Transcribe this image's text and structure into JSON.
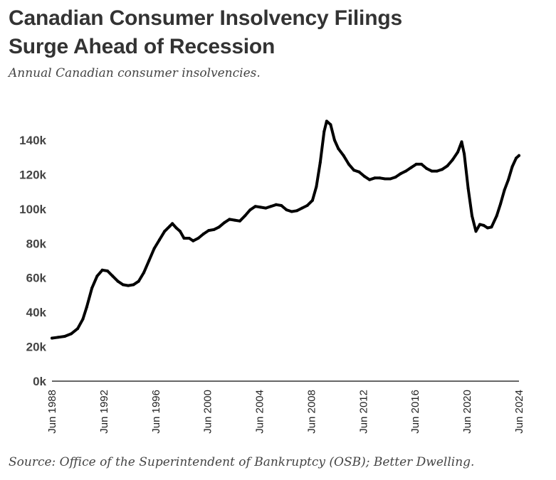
{
  "header": {
    "title_line1": "Canadian Consumer Insolvency Filings",
    "title_line2": "Surge Ahead of Recession",
    "subtitle": "Annual Canadian consumer insolvencies."
  },
  "footer": {
    "source": "Source: Office of the Superintendent of Bankruptcy (OSB); Better Dwelling."
  },
  "colors": {
    "line": "#000000",
    "axis": "#333333",
    "text": "#444444"
  },
  "chart_data": {
    "type": "line",
    "title": "Canadian Consumer Insolvency Filings Surge Ahead of Recession",
    "subtitle": "Annual Canadian consumer insolvencies.",
    "xlabel": "",
    "ylabel": "",
    "ylim": [
      0,
      140
    ],
    "xlim": [
      1988.42,
      2024.42
    ],
    "grid": false,
    "legend": "none",
    "yticks": [
      {
        "value": 0,
        "label": "0k"
      },
      {
        "value": 20,
        "label": "20k"
      },
      {
        "value": 40,
        "label": "40k"
      },
      {
        "value": 60,
        "label": "60k"
      },
      {
        "value": 80,
        "label": "80k"
      },
      {
        "value": 100,
        "label": "100k"
      },
      {
        "value": 120,
        "label": "120k"
      },
      {
        "value": 140,
        "label": "140k"
      }
    ],
    "xticks": [
      {
        "value": 1988.42,
        "label": "Jun 1988"
      },
      {
        "value": 1992.42,
        "label": "Jun 1992"
      },
      {
        "value": 1996.42,
        "label": "Jun 1996"
      },
      {
        "value": 2000.42,
        "label": "Jun 2000"
      },
      {
        "value": 2004.42,
        "label": "Jun 2004"
      },
      {
        "value": 2008.42,
        "label": "Jun 2008"
      },
      {
        "value": 2012.42,
        "label": "Jun 2012"
      },
      {
        "value": 2016.42,
        "label": "Jun 2016"
      },
      {
        "value": 2020.42,
        "label": "Jun 2020"
      },
      {
        "value": 2024.42,
        "label": "Jun 2024"
      }
    ],
    "series": [
      {
        "name": "Annual consumer insolvencies (thousands)",
        "x": [
          1988.42,
          1988.9,
          1989.4,
          1989.9,
          1990.4,
          1990.8,
          1991.1,
          1991.5,
          1991.9,
          1992.3,
          1992.7,
          1993.1,
          1993.5,
          1993.9,
          1994.3,
          1994.7,
          1995.1,
          1995.5,
          1995.9,
          1996.3,
          1996.7,
          1997.1,
          1997.5,
          1997.7,
          1998.0,
          1998.3,
          1998.6,
          1999.0,
          1999.3,
          1999.7,
          2000.1,
          2000.5,
          2000.9,
          2001.3,
          2001.7,
          2002.1,
          2002.5,
          2002.9,
          2003.3,
          2003.7,
          2004.1,
          2004.5,
          2004.9,
          2005.3,
          2005.7,
          2006.1,
          2006.5,
          2006.9,
          2007.3,
          2007.7,
          2008.1,
          2008.5,
          2008.8,
          2009.1,
          2009.4,
          2009.6,
          2009.9,
          2010.2,
          2010.5,
          2010.9,
          2011.3,
          2011.7,
          2012.1,
          2012.5,
          2012.9,
          2013.3,
          2013.7,
          2014.1,
          2014.5,
          2014.9,
          2015.3,
          2015.7,
          2016.1,
          2016.5,
          2016.9,
          2017.3,
          2017.7,
          2018.1,
          2018.5,
          2018.9,
          2019.3,
          2019.7,
          2020.0,
          2020.2,
          2020.5,
          2020.8,
          2021.1,
          2021.4,
          2021.7,
          2022.0,
          2022.3,
          2022.7,
          2023.0,
          2023.3,
          2023.6,
          2023.9,
          2024.2,
          2024.42
        ],
        "values": [
          25,
          25.5,
          26,
          27.5,
          30.5,
          36,
          43,
          54,
          61,
          64.5,
          64,
          61,
          58,
          56,
          55.5,
          56,
          58,
          63,
          70,
          77,
          82,
          87,
          90,
          91.5,
          89,
          87,
          83,
          83,
          81.5,
          83,
          85.5,
          87.5,
          88,
          89.5,
          92,
          94,
          93.5,
          93,
          96,
          99.5,
          101.5,
          101,
          100.5,
          101.5,
          102.5,
          102,
          99.5,
          98.5,
          99,
          100.5,
          102,
          105,
          113,
          127,
          145,
          151,
          149,
          140,
          135,
          131,
          126,
          122.5,
          121.5,
          119,
          117,
          118,
          118,
          117.5,
          117.5,
          118.5,
          120.5,
          122,
          124,
          126,
          126,
          123.5,
          122,
          122,
          123,
          125,
          128.5,
          133,
          139,
          132,
          112,
          96,
          87,
          91,
          90.5,
          89,
          89.5,
          96,
          103,
          111,
          117,
          124.5,
          129.5,
          131
        ]
      }
    ]
  }
}
